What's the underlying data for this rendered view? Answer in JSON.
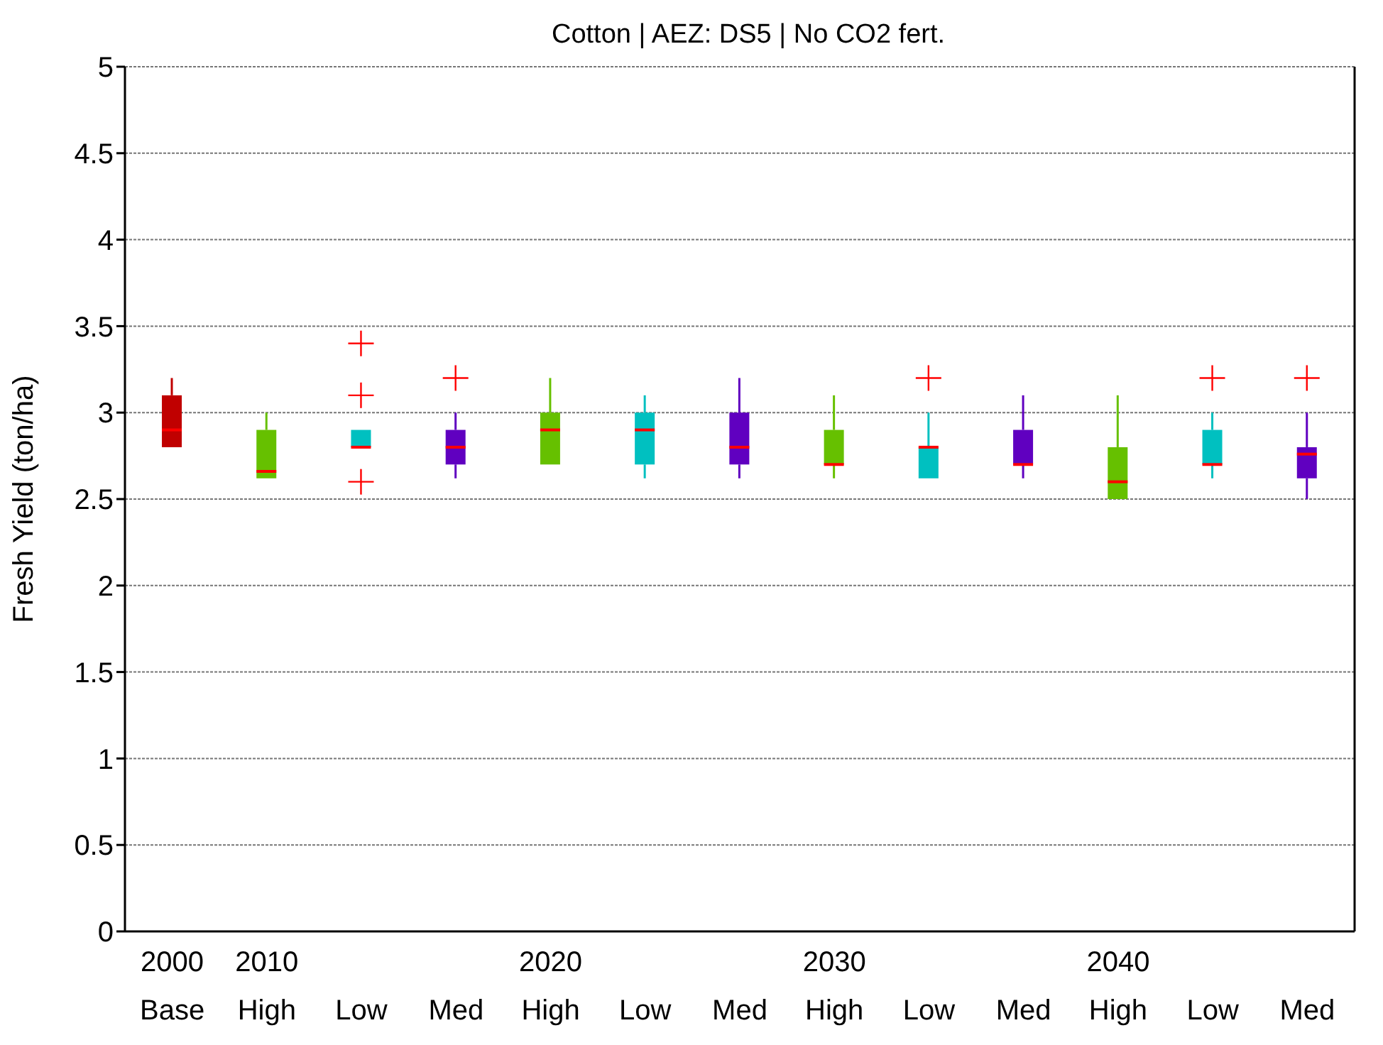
{
  "chart_data": {
    "type": "box",
    "title": "Cotton | AEZ: DS5 | No CO2 fert.",
    "ylabel": "Fresh Yield (ton/ha)",
    "categories": [
      "2000\nBase",
      "2010\nHigh",
      "Low",
      "Med",
      "2020\nHigh",
      "Low",
      "Med",
      "2030\nHigh",
      "Low",
      "Med",
      "2040\nHigh",
      "Low",
      "Med"
    ],
    "colors": [
      "#c00000",
      "#66c000",
      "#00c0c0",
      "#6000c0",
      "#66c000",
      "#00c0c0",
      "#6000c0",
      "#66c000",
      "#00c0c0",
      "#6000c0",
      "#66c000",
      "#00c0c0",
      "#6000c0"
    ],
    "boxes": [
      {
        "low": 2.8,
        "q1": 2.8,
        "median": 2.9,
        "q3": 3.1,
        "high": 3.2
      },
      {
        "low": 2.62,
        "q1": 2.62,
        "median": 2.66,
        "q3": 2.9,
        "high": 3.0
      },
      {
        "low": 2.8,
        "q1": 2.8,
        "median": 2.8,
        "q3": 2.9,
        "high": 2.9,
        "outliers": [
          3.4,
          3.1,
          2.6
        ]
      },
      {
        "low": 2.62,
        "q1": 2.7,
        "median": 2.8,
        "q3": 2.9,
        "high": 3.0,
        "outliers": [
          3.2
        ]
      },
      {
        "low": 2.7,
        "q1": 2.7,
        "median": 2.9,
        "q3": 3.0,
        "high": 3.2
      },
      {
        "low": 2.62,
        "q1": 2.7,
        "median": 2.9,
        "q3": 3.0,
        "high": 3.1
      },
      {
        "low": 2.62,
        "q1": 2.7,
        "median": 2.8,
        "q3": 3.0,
        "high": 3.2
      },
      {
        "low": 2.62,
        "q1": 2.7,
        "median": 2.7,
        "q3": 2.9,
        "high": 3.1
      },
      {
        "low": 2.62,
        "q1": 2.62,
        "median": 2.8,
        "q3": 2.8,
        "high": 3.0,
        "outliers": [
          3.2
        ]
      },
      {
        "low": 2.62,
        "q1": 2.7,
        "median": 2.7,
        "q3": 2.9,
        "high": 3.1
      },
      {
        "low": 2.5,
        "q1": 2.5,
        "median": 2.6,
        "q3": 2.8,
        "high": 3.1
      },
      {
        "low": 2.62,
        "q1": 2.7,
        "median": 2.7,
        "q3": 2.9,
        "high": 3.0,
        "outliers": [
          3.2
        ]
      },
      {
        "low": 2.5,
        "q1": 2.62,
        "median": 2.76,
        "q3": 2.8,
        "high": 3.0,
        "outliers": [
          3.2
        ]
      }
    ],
    "ylim": [
      0,
      5
    ],
    "yticks": [
      0,
      0.5,
      1,
      1.5,
      2,
      2.5,
      3,
      3.5,
      4,
      4.5,
      5
    ],
    "grid": "y"
  }
}
